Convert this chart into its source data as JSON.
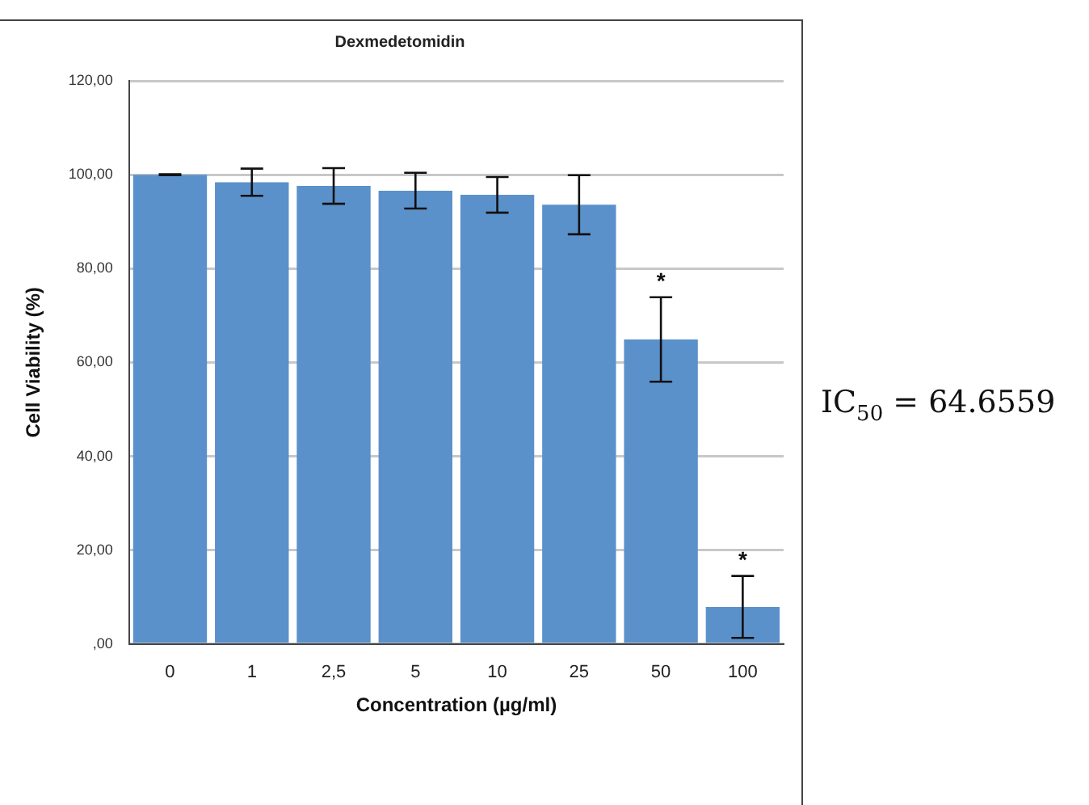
{
  "chart_data": {
    "type": "bar",
    "title": "Dexmedetomidin",
    "xlabel": "Concentration (µg/ml)",
    "ylabel": "Cell Viability (%)",
    "categories": [
      "0",
      "1",
      "2,5",
      "5",
      "10",
      "25",
      "50",
      "100"
    ],
    "values": [
      100,
      98.4,
      97.6,
      96.6,
      95.7,
      93.6,
      64.9,
      7.9
    ],
    "errors": [
      0.1,
      2.9,
      3.8,
      3.8,
      3.8,
      6.3,
      9,
      6.6
    ],
    "color": "#5b91cb",
    "ylim": [
      0,
      120
    ],
    "yticks": [
      {
        "value": 0,
        "label": ",00"
      },
      {
        "value": 20,
        "label": "20,00"
      },
      {
        "value": 40,
        "label": "40,00"
      },
      {
        "value": 60,
        "label": "60,00"
      },
      {
        "value": 80,
        "label": "80,00"
      },
      {
        "value": 100,
        "label": "100,00"
      },
      {
        "value": 120,
        "label": "120,00"
      }
    ],
    "grid": "y",
    "legend": false,
    "annotations": [
      {
        "text": "*",
        "x": "50",
        "y": 74
      },
      {
        "text": "*",
        "x": "100",
        "y": 14.5
      },
      "IC$_{50}$ = 64.6559"
    ]
  }
}
